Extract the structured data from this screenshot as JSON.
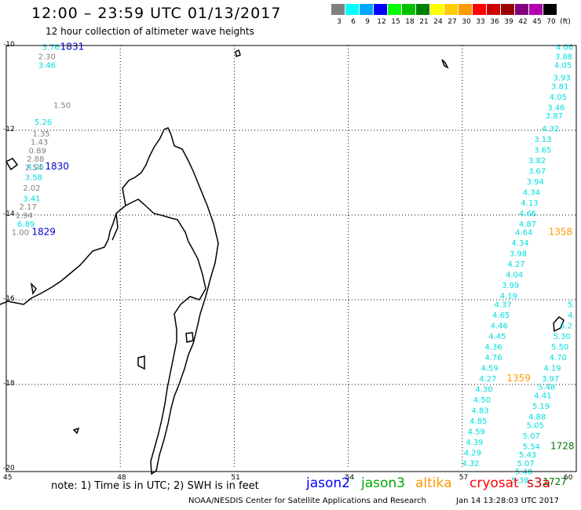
{
  "title": "12:00 – 23:59 UTC 01/13/2017",
  "subtitle": "12 hour collection of altimeter wave heights",
  "legend": {
    "unit": "(ft)",
    "entries": [
      {
        "label": "3",
        "color": "#808080"
      },
      {
        "label": "6",
        "color": "#00ffff"
      },
      {
        "label": "9",
        "color": "#00aaff"
      },
      {
        "label": "12",
        "color": "#0000ff"
      },
      {
        "label": "15",
        "color": "#00ff00"
      },
      {
        "label": "18",
        "color": "#00c000"
      },
      {
        "label": "21",
        "color": "#008000"
      },
      {
        "label": "24",
        "color": "#ffff00"
      },
      {
        "label": "27",
        "color": "#ffcc00"
      },
      {
        "label": "30",
        "color": "#ff9900"
      },
      {
        "label": "33",
        "color": "#ff0000"
      },
      {
        "label": "36",
        "color": "#cc0000"
      },
      {
        "label": "39",
        "color": "#990000"
      },
      {
        "label": "42",
        "color": "#800080"
      },
      {
        "label": "45",
        "color": "#b000b0"
      },
      {
        "label": "70",
        "color": "#000000"
      }
    ]
  },
  "axes": {
    "lat_labels": [
      "-10",
      "-12",
      "-14",
      "-16",
      "-18",
      "-20"
    ],
    "lon_labels": [
      "45",
      "48",
      "51",
      "54",
      "57",
      "60"
    ]
  },
  "tracks": [
    {
      "color": "#00dddd",
      "items": [
        {
          "text": "3.76",
          "lon": 46.4,
          "lat": -10.03
        },
        {
          "text": "3.46",
          "lon": 46.3,
          "lat": -10.45
        },
        {
          "text": "5.26",
          "lon": 46.2,
          "lat": -11.8
        },
        {
          "text": "4.25",
          "lon": 46.0,
          "lat": -12.85
        },
        {
          "text": "3.58",
          "lon": 45.95,
          "lat": -13.1
        },
        {
          "text": "3.41",
          "lon": 45.9,
          "lat": -13.6
        },
        {
          "text": "6.89",
          "lon": 45.75,
          "lat": -14.2
        }
      ]
    },
    {
      "color": "#808080",
      "items": [
        {
          "text": "2.30",
          "lon": 46.3,
          "lat": -10.25
        },
        {
          "text": "1.50",
          "lon": 46.7,
          "lat": -11.4
        },
        {
          "text": "1.35",
          "lon": 46.15,
          "lat": -12.07
        },
        {
          "text": "1.43",
          "lon": 46.1,
          "lat": -12.27
        },
        {
          "text": "0.89",
          "lon": 46.05,
          "lat": -12.47
        },
        {
          "text": "2.88",
          "lon": 46.0,
          "lat": -12.67
        },
        {
          "text": "2.54",
          "lon": 45.95,
          "lat": -12.87
        },
        {
          "text": "2.02",
          "lon": 45.9,
          "lat": -13.35
        },
        {
          "text": "2.17",
          "lon": 45.8,
          "lat": -13.8
        },
        {
          "text": "1.94",
          "lon": 45.7,
          "lat": -14.0
        },
        {
          "text": "1.00",
          "lon": 45.6,
          "lat": -14.4
        }
      ]
    },
    {
      "color": "#00dddd",
      "items": [
        {
          "text": "4.06",
          "lon": 59.92,
          "lat": -10.03
        },
        {
          "text": "3.88",
          "lon": 59.9,
          "lat": -10.25
        },
        {
          "text": "4.05",
          "lon": 59.88,
          "lat": -10.45
        },
        {
          "text": "3.93",
          "lon": 59.85,
          "lat": -10.75
        },
        {
          "text": "3.81",
          "lon": 59.8,
          "lat": -10.95
        },
        {
          "text": "4.05",
          "lon": 59.75,
          "lat": -11.2
        },
        {
          "text": "3.46",
          "lon": 59.7,
          "lat": -11.45
        },
        {
          "text": "3.87",
          "lon": 59.65,
          "lat": -11.65
        },
        {
          "text": "4.32",
          "lon": 59.55,
          "lat": -11.95
        },
        {
          "text": "3.13",
          "lon": 59.35,
          "lat": -12.2
        },
        {
          "text": "3.65",
          "lon": 59.35,
          "lat": -12.45
        },
        {
          "text": "3.82",
          "lon": 59.2,
          "lat": -12.7
        },
        {
          "text": "3.67",
          "lon": 59.2,
          "lat": -12.95
        },
        {
          "text": "3.94",
          "lon": 59.15,
          "lat": -13.2
        },
        {
          "text": "4.34",
          "lon": 59.05,
          "lat": -13.45
        },
        {
          "text": "4.13",
          "lon": 59.0,
          "lat": -13.7
        },
        {
          "text": "4.66",
          "lon": 58.95,
          "lat": -13.95
        },
        {
          "text": "4.87",
          "lon": 58.95,
          "lat": -14.2
        },
        {
          "text": "4.64",
          "lon": 58.85,
          "lat": -14.4
        },
        {
          "text": "4.34",
          "lon": 58.75,
          "lat": -14.65
        },
        {
          "text": "3.98",
          "lon": 58.7,
          "lat": -14.9
        },
        {
          "text": "4.27",
          "lon": 58.65,
          "lat": -15.15
        },
        {
          "text": "4.04",
          "lon": 58.6,
          "lat": -15.4
        },
        {
          "text": "3.99",
          "lon": 58.5,
          "lat": -15.65
        },
        {
          "text": "4.19",
          "lon": 58.45,
          "lat": -15.9
        },
        {
          "text": "4.37",
          "lon": 58.3,
          "lat": -16.1
        },
        {
          "text": "4.65",
          "lon": 58.25,
          "lat": -16.35
        },
        {
          "text": "4.46",
          "lon": 58.2,
          "lat": -16.6
        },
        {
          "text": "4.45",
          "lon": 58.15,
          "lat": -16.85
        },
        {
          "text": "4.36",
          "lon": 58.05,
          "lat": -17.1
        },
        {
          "text": "4.76",
          "lon": 58.05,
          "lat": -17.35
        },
        {
          "text": "4.59",
          "lon": 57.95,
          "lat": -17.6
        },
        {
          "text": "4.27",
          "lon": 57.9,
          "lat": -17.85
        },
        {
          "text": "4.30",
          "lon": 57.8,
          "lat": -18.1
        },
        {
          "text": "4.50",
          "lon": 57.75,
          "lat": -18.35
        },
        {
          "text": "4.83",
          "lon": 57.7,
          "lat": -18.6
        },
        {
          "text": "4.85",
          "lon": 57.65,
          "lat": -18.85
        },
        {
          "text": "4.59",
          "lon": 57.6,
          "lat": -19.1
        },
        {
          "text": "4.39",
          "lon": 57.55,
          "lat": -19.35
        },
        {
          "text": "4.29",
          "lon": 57.5,
          "lat": -19.6
        },
        {
          "text": "4.32",
          "lon": 57.45,
          "lat": -19.85
        }
      ]
    },
    {
      "color": "#00dddd",
      "items": [
        {
          "text": "5.",
          "lon": 59.97,
          "lat": -16.1
        },
        {
          "text": "4.",
          "lon": 59.97,
          "lat": -16.35
        },
        {
          "text": "5.2",
          "lon": 59.9,
          "lat": -16.6
        },
        {
          "text": "5.30",
          "lon": 59.85,
          "lat": -16.85
        },
        {
          "text": "5.50",
          "lon": 59.8,
          "lat": -17.1
        },
        {
          "text": "4.70",
          "lon": 59.75,
          "lat": -17.35
        },
        {
          "text": "4.19",
          "lon": 59.6,
          "lat": -17.6
        },
        {
          "text": "3.97",
          "lon": 59.55,
          "lat": -17.85
        },
        {
          "text": "5.48",
          "lon": 59.45,
          "lat": -18.05
        },
        {
          "text": "4.41",
          "lon": 59.35,
          "lat": -18.25
        },
        {
          "text": "5.19",
          "lon": 59.3,
          "lat": -18.5
        },
        {
          "text": "4.88",
          "lon": 59.2,
          "lat": -18.75
        },
        {
          "text": "5.05",
          "lon": 59.15,
          "lat": -18.95
        },
        {
          "text": "5.07",
          "lon": 59.05,
          "lat": -19.2
        },
        {
          "text": "5.54",
          "lon": 59.05,
          "lat": -19.45
        },
        {
          "text": "5.43",
          "lon": 58.95,
          "lat": -19.65
        },
        {
          "text": "5.07",
          "lon": 58.9,
          "lat": -19.85
        },
        {
          "text": "5.48",
          "lon": 58.85,
          "lat": -20.05
        },
        {
          "text": "5.38",
          "lon": 58.75,
          "lat": -20.25
        }
      ]
    }
  ],
  "time_labels": [
    {
      "text": "1831",
      "color": "#0000cc",
      "lon": 47.05,
      "lat": -10.03
    },
    {
      "text": "1830",
      "color": "#0000cc",
      "lon": 46.65,
      "lat": -12.85
    },
    {
      "text": "1829",
      "color": "#0000cc",
      "lon": 46.3,
      "lat": -14.4
    },
    {
      "text": "1358",
      "color": "#ff9900",
      "lon": 59.9,
      "lat": -14.4
    },
    {
      "text": "1359",
      "color": "#ff9900",
      "lon": 58.8,
      "lat": -17.85
    },
    {
      "text": "1728",
      "color": "#007700",
      "lon": 59.95,
      "lat": -19.45
    },
    {
      "text": "1727",
      "color": "#007700",
      "lon": 59.75,
      "lat": -20.3
    }
  ],
  "footer": {
    "note": "note: 1) Time is in UTC; 2) SWH is in feet",
    "satellites": [
      {
        "name": "jason2",
        "color": "#0000ff"
      },
      {
        "name": "jason3",
        "color": "#00aa00"
      },
      {
        "name": "altika",
        "color": "#ff9900"
      },
      {
        "name": "cryosat",
        "color": "#ff0000"
      },
      {
        "name": "s3a",
        "color": "#cc0000"
      }
    ],
    "credit": "NOAA/NESDIS Center for Satellite Applications and Research",
    "generated": "Jan 14 13:28:03 UTC 2017"
  }
}
